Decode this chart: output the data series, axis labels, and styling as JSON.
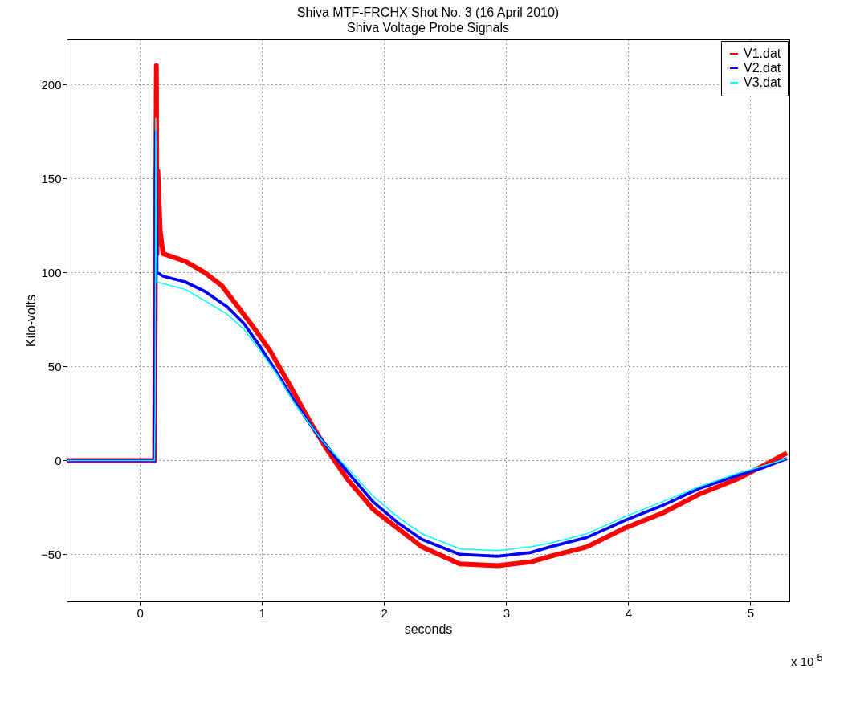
{
  "chart_data": {
    "type": "line",
    "title": "Shiva MTF-FRCHX Shot No. 3 (16 April 2010)",
    "subtitle": "Shiva Voltage Probe Signals",
    "xlabel": "seconds",
    "ylabel": "Kilo-volts",
    "annotations": [
      "x 10$^{-5}$"
    ],
    "xlim": [
      -0.6,
      5.32
    ],
    "ylim": [
      -75,
      224
    ],
    "xticks": [
      0,
      1,
      2,
      3,
      4,
      5
    ],
    "yticks": [
      -50,
      0,
      50,
      100,
      150,
      200
    ],
    "grid": true,
    "legend": "top right",
    "series": [
      {
        "name": "V1.dat",
        "color": "#ff0000",
        "x": [
          -0.6,
          0.12,
          0.135,
          0.14,
          0.147,
          0.166,
          0.19,
          0.37,
          0.53,
          0.67,
          0.8,
          0.94,
          1.07,
          1.21,
          1.39,
          1.53,
          1.7,
          1.91,
          2.11,
          2.31,
          2.62,
          2.93,
          3.2,
          3.36,
          3.66,
          3.97,
          4.28,
          4.58,
          4.89,
          5.1,
          5.3
        ],
        "values": [
          0,
          0,
          210,
          110,
          154,
          122,
          110,
          106,
          100,
          93,
          82,
          70,
          58,
          42,
          21,
          6,
          -10,
          -26,
          -36,
          -46,
          -55,
          -56,
          -54,
          -51,
          -46,
          -36,
          -28,
          -18,
          -10,
          -3,
          4
        ]
      },
      {
        "name": "V2.dat",
        "color": "#0000ff",
        "x": [
          -0.6,
          0.12,
          0.13,
          0.14,
          0.19,
          0.37,
          0.53,
          0.71,
          0.85,
          0.99,
          1.12,
          1.26,
          1.44,
          1.7,
          1.91,
          2.11,
          2.31,
          2.62,
          2.93,
          3.2,
          3.36,
          3.66,
          3.97,
          4.28,
          4.58,
          4.89,
          5.1,
          5.3
        ],
        "values": [
          0,
          0,
          175,
          100,
          98,
          95,
          90,
          82,
          73,
          60,
          47,
          32,
          15,
          -6,
          -22,
          -33,
          -42,
          -50,
          -51,
          -49,
          -46,
          -41,
          -32,
          -24,
          -15,
          -8,
          -4,
          1
        ]
      },
      {
        "name": "V3.dat",
        "color": "#00ffff",
        "x": [
          -0.6,
          0.12,
          0.125,
          0.13,
          0.14,
          0.19,
          0.37,
          0.53,
          0.71,
          0.85,
          0.99,
          1.12,
          1.26,
          1.44,
          1.5,
          1.7,
          1.91,
          2.11,
          2.31,
          2.62,
          2.93,
          3.2,
          3.36,
          3.66,
          3.97,
          4.28,
          4.58,
          4.89,
          5.1,
          5.3
        ],
        "values": [
          0,
          0,
          28,
          182,
          95,
          94,
          91,
          85,
          78,
          70,
          58,
          46,
          31,
          15,
          10,
          -4,
          -19,
          -30,
          -39,
          -47,
          -48,
          -46,
          -44,
          -39,
          -30,
          -22,
          -14,
          -7,
          -3,
          1
        ]
      }
    ]
  }
}
